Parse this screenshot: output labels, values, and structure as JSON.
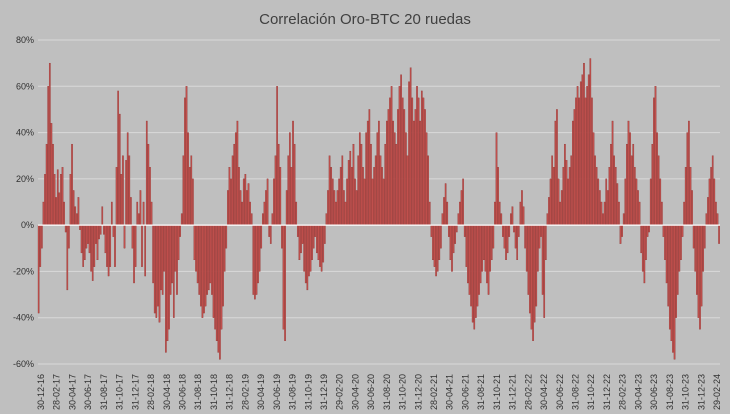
{
  "chart_data": {
    "type": "bar",
    "title": "Correlación Oro-BTC 20 ruedas",
    "xlabel": "",
    "ylabel": "",
    "ylim": [
      -60,
      80
    ],
    "yticks": [
      80,
      60,
      40,
      20,
      0,
      -20,
      -40,
      -60
    ],
    "ytick_labels": [
      "80%",
      "60%",
      "40%",
      "20%",
      "0%",
      "-20%",
      "-40%",
      "-60%"
    ],
    "grid": true,
    "legend": "none",
    "colors": {
      "bar": "#c0504d",
      "bar_edge": "#8b2f2d",
      "background": "#bfbfbf",
      "grid": "#d9d9d9"
    },
    "x_tick_labels": [
      "30-12-16",
      "28-02-17",
      "30-04-17",
      "30-06-17",
      "31-08-17",
      "31-10-17",
      "31-12-17",
      "28-02-18",
      "30-04-18",
      "30-06-18",
      "31-08-18",
      "31-10-18",
      "31-12-18",
      "28-02-19",
      "30-04-19",
      "30-06-19",
      "31-08-19",
      "31-10-19",
      "31-12-19",
      "29-02-20",
      "30-04-20",
      "30-06-20",
      "31-08-20",
      "31-10-20",
      "31-12-20",
      "28-02-21",
      "30-04-21",
      "30-06-21",
      "31-08-21",
      "31-10-21",
      "31-12-21",
      "28-02-22",
      "30-04-22",
      "30-06-22",
      "31-08-22",
      "31-10-22",
      "31-12-22",
      "28-02-23",
      "30-04-23",
      "30-06-23",
      "31-08-23",
      "31-10-23",
      "31-12-23",
      "29-02-24"
    ],
    "values": [
      -38,
      -18,
      -10,
      10,
      22,
      35,
      60,
      70,
      44,
      35,
      22,
      12,
      24,
      14,
      22,
      25,
      10,
      -3,
      -28,
      -10,
      22,
      35,
      15,
      8,
      5,
      12,
      -2,
      -12,
      -18,
      -15,
      -10,
      -8,
      -12,
      -20,
      -24,
      -18,
      -8,
      -15,
      -6,
      -4,
      8,
      -4,
      -12,
      -18,
      -22,
      -18,
      10,
      -5,
      -18,
      25,
      58,
      48,
      22,
      30,
      -10,
      28,
      40,
      30,
      12,
      -10,
      -25,
      -18,
      10,
      5,
      15,
      -18,
      10,
      -22,
      45,
      35,
      25,
      10,
      -25,
      -38,
      -40,
      -35,
      -42,
      -28,
      -30,
      -20,
      -55,
      -50,
      -45,
      -30,
      -25,
      -40,
      -20,
      -30,
      -15,
      -5,
      5,
      30,
      55,
      60,
      40,
      25,
      30,
      20,
      -15,
      -20,
      -25,
      -30,
      -35,
      -40,
      -38,
      -35,
      -30,
      -28,
      -25,
      -30,
      -40,
      -45,
      -50,
      -55,
      -58,
      -45,
      -35,
      -20,
      -10,
      15,
      25,
      20,
      30,
      35,
      40,
      45,
      25,
      15,
      10,
      20,
      22,
      15,
      18,
      10,
      5,
      -30,
      -32,
      -30,
      -25,
      -20,
      -10,
      5,
      10,
      15,
      20,
      -5,
      -8,
      5,
      20,
      30,
      60,
      35,
      25,
      -10,
      -45,
      -50,
      15,
      30,
      40,
      25,
      45,
      35,
      10,
      -5,
      -15,
      -12,
      -8,
      -20,
      -25,
      -28,
      -22,
      -20,
      -15,
      -10,
      -5,
      -12,
      -15,
      -18,
      -20,
      -16,
      -8,
      5,
      15,
      30,
      25,
      20,
      15,
      10,
      15,
      20,
      25,
      30,
      15,
      10,
      20,
      28,
      32,
      25,
      35,
      20,
      15,
      30,
      40,
      35,
      25,
      20,
      40,
      45,
      50,
      35,
      20,
      25,
      30,
      40,
      45,
      30,
      25,
      20,
      35,
      45,
      50,
      55,
      60,
      45,
      40,
      35,
      50,
      60,
      65,
      55,
      50,
      40,
      30,
      62,
      68,
      55,
      45,
      50,
      60,
      55,
      45,
      58,
      55,
      50,
      40,
      30,
      10,
      -5,
      -15,
      -18,
      -22,
      -20,
      -15,
      -10,
      5,
      12,
      18,
      10,
      -5,
      -15,
      -20,
      -12,
      -8,
      -3,
      5,
      10,
      15,
      20,
      -5,
      -18,
      -25,
      -30,
      -35,
      -42,
      -45,
      -40,
      -35,
      -30,
      -25,
      -20,
      -15,
      -20,
      -25,
      -30,
      -20,
      -15,
      -10,
      10,
      40,
      25,
      10,
      5,
      -5,
      -10,
      -15,
      -12,
      -5,
      5,
      8,
      -3,
      -10,
      -15,
      -5,
      10,
      15,
      8,
      -10,
      -20,
      -30,
      -38,
      -45,
      -50,
      -42,
      -35,
      -20,
      -10,
      -5,
      -30,
      -40,
      -15,
      5,
      12,
      20,
      30,
      25,
      45,
      50,
      20,
      10,
      15,
      25,
      35,
      28,
      20,
      25,
      30,
      45,
      50,
      55,
      60,
      55,
      62,
      65,
      70,
      55,
      60,
      65,
      72,
      55,
      40,
      30,
      25,
      20,
      15,
      10,
      5,
      10,
      20,
      15,
      25,
      35,
      45,
      30,
      25,
      18,
      10,
      -8,
      -5,
      5,
      20,
      35,
      45,
      40,
      30,
      35,
      25,
      20,
      15,
      10,
      -12,
      -20,
      -25,
      -15,
      -5,
      -3,
      20,
      35,
      55,
      60,
      40,
      30,
      20,
      10,
      -5,
      -15,
      -25,
      -35,
      -45,
      -50,
      -55,
      -58,
      -40,
      -30,
      -20,
      -15,
      -5,
      10,
      25,
      40,
      45,
      25,
      15,
      -10,
      -20,
      -30,
      -40,
      -45,
      -35,
      -20,
      -10,
      5,
      12,
      20,
      25,
      30,
      20,
      10,
      5,
      -8
    ]
  }
}
